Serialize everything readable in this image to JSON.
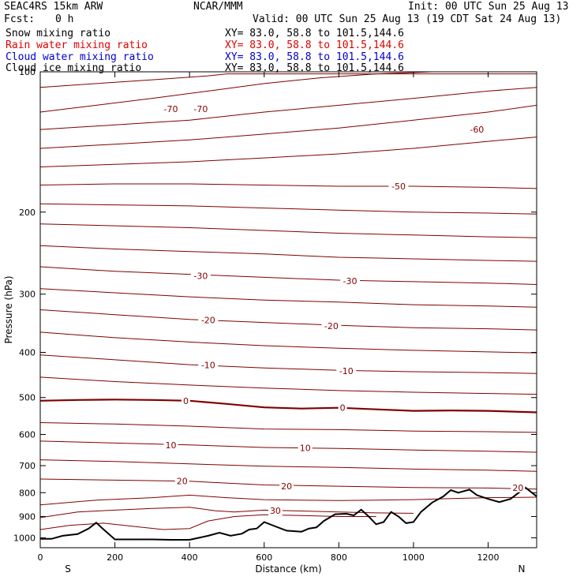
{
  "header": {
    "model": "SEAC4RS 15km ARW",
    "org": "NCAR/MMM",
    "init": "Init: 00 UTC Sun 25 Aug 13",
    "fcst_label": "Fcst:",
    "fcst_value": "0 h",
    "valid": "Valid: 00 UTC Sun 25 Aug 13 (19 CDT Sat 24 Aug 13)"
  },
  "fields": [
    {
      "name": "Snow mixing ratio",
      "xy": "XY=  83.0, 58.8 to 101.5,144.6",
      "color": "#000000"
    },
    {
      "name": "Rain water mixing ratio",
      "xy": "XY=  83.0, 58.8 to 101.5,144.6",
      "color": "#e00000"
    },
    {
      "name": "Cloud water mixing ratio",
      "xy": "XY=  83.0, 58.8 to 101.5,144.6",
      "color": "#0000d0"
    },
    {
      "name": "Cloud ice mixing ratio",
      "xy": "XY=  83.0, 58.8 to 101.5,144.6",
      "color": "#000000"
    }
  ],
  "chart_data": {
    "type": "line",
    "title": "",
    "xlabel": "Distance (km)",
    "ylabel": "Pressure (hPa)",
    "xlim": [
      0,
      1330
    ],
    "ylim": [
      1050,
      100
    ],
    "yscale": "log",
    "x_ticks": [
      0,
      200,
      400,
      600,
      800,
      1000,
      1200
    ],
    "y_ticks": [
      100,
      200,
      300,
      400,
      500,
      600,
      700,
      800,
      900,
      1000
    ],
    "x_end_labels": {
      "left": "S",
      "right": "N"
    },
    "contour_color": "#800000",
    "terrain_color": "#000000",
    "isotherms": [
      {
        "value": -75,
        "points": [
          [
            0,
            108
          ],
          [
            150,
            106
          ],
          [
            300,
            104
          ],
          [
            450,
            102
          ],
          [
            500,
            101
          ],
          [
            1330,
            101
          ]
        ]
      },
      {
        "value": -70,
        "points": [
          [
            0,
            122
          ],
          [
            150,
            118
          ],
          [
            300,
            114
          ],
          [
            450,
            110
          ],
          [
            600,
            106
          ],
          [
            750,
            103
          ],
          [
            900,
            101
          ],
          [
            1050,
            100
          ]
        ]
      },
      {
        "value": -65,
        "points": [
          [
            0,
            133
          ],
          [
            200,
            130
          ],
          [
            400,
            127
          ],
          [
            600,
            122
          ],
          [
            800,
            118
          ],
          [
            1000,
            114
          ],
          [
            1200,
            110
          ],
          [
            1330,
            108
          ]
        ]
      },
      {
        "value": -60,
        "points": [
          [
            0,
            146
          ],
          [
            200,
            143
          ],
          [
            400,
            140
          ],
          [
            600,
            136
          ],
          [
            800,
            132
          ],
          [
            1000,
            127
          ],
          [
            1200,
            122
          ],
          [
            1330,
            118
          ]
        ]
      },
      {
        "value": -55,
        "points": [
          [
            0,
            160
          ],
          [
            200,
            158
          ],
          [
            400,
            156
          ],
          [
            600,
            153
          ],
          [
            800,
            150
          ],
          [
            1000,
            146
          ],
          [
            1200,
            141
          ],
          [
            1330,
            138
          ]
        ]
      },
      {
        "value": -50,
        "points": [
          [
            0,
            175
          ],
          [
            200,
            174
          ],
          [
            400,
            174
          ],
          [
            600,
            175
          ],
          [
            800,
            176
          ],
          [
            1000,
            176
          ],
          [
            1200,
            177
          ],
          [
            1330,
            178
          ]
        ]
      },
      {
        "value": -45,
        "points": [
          [
            0,
            192
          ],
          [
            200,
            193
          ],
          [
            400,
            194
          ],
          [
            600,
            196
          ],
          [
            800,
            198
          ],
          [
            1000,
            200
          ],
          [
            1200,
            201
          ],
          [
            1330,
            202
          ]
        ]
      },
      {
        "value": -40,
        "points": [
          [
            0,
            212
          ],
          [
            200,
            214
          ],
          [
            400,
            216
          ],
          [
            600,
            219
          ],
          [
            800,
            222
          ],
          [
            1000,
            224
          ],
          [
            1200,
            226
          ],
          [
            1330,
            227
          ]
        ]
      },
      {
        "value": -35,
        "points": [
          [
            0,
            236
          ],
          [
            200,
            240
          ],
          [
            400,
            243
          ],
          [
            600,
            246
          ],
          [
            800,
            250
          ],
          [
            1000,
            252
          ],
          [
            1200,
            254
          ],
          [
            1330,
            255
          ]
        ]
      },
      {
        "value": -30,
        "points": [
          [
            0,
            262
          ],
          [
            200,
            268
          ],
          [
            400,
            272
          ],
          [
            600,
            276
          ],
          [
            800,
            280
          ],
          [
            1000,
            282
          ],
          [
            1200,
            284
          ],
          [
            1330,
            286
          ]
        ]
      },
      {
        "value": -25,
        "points": [
          [
            0,
            292
          ],
          [
            200,
            298
          ],
          [
            400,
            304
          ],
          [
            600,
            309
          ],
          [
            800,
            312
          ],
          [
            1000,
            316
          ],
          [
            1200,
            318
          ],
          [
            1330,
            320
          ]
        ]
      },
      {
        "value": -20,
        "points": [
          [
            0,
            324
          ],
          [
            200,
            332
          ],
          [
            400,
            340
          ],
          [
            600,
            345
          ],
          [
            800,
            350
          ],
          [
            1000,
            354
          ],
          [
            1200,
            356
          ],
          [
            1330,
            358
          ]
        ]
      },
      {
        "value": -15,
        "points": [
          [
            0,
            362
          ],
          [
            200,
            372
          ],
          [
            400,
            380
          ],
          [
            600,
            387
          ],
          [
            800,
            392
          ],
          [
            1000,
            396
          ],
          [
            1200,
            399
          ],
          [
            1330,
            401
          ]
        ]
      },
      {
        "value": -10,
        "points": [
          [
            0,
            405
          ],
          [
            200,
            415
          ],
          [
            400,
            425
          ],
          [
            600,
            432
          ],
          [
            800,
            437
          ],
          [
            1000,
            440
          ],
          [
            1200,
            442
          ],
          [
            1330,
            444
          ]
        ]
      },
      {
        "value": -5,
        "points": [
          [
            0,
            452
          ],
          [
            200,
            462
          ],
          [
            400,
            470
          ],
          [
            600,
            477
          ],
          [
            800,
            483
          ],
          [
            1000,
            487
          ],
          [
            1200,
            490
          ],
          [
            1330,
            492
          ]
        ]
      },
      {
        "value": 0,
        "points": [
          [
            0,
            508
          ],
          [
            100,
            506
          ],
          [
            200,
            505
          ],
          [
            300,
            506
          ],
          [
            400,
            508
          ],
          [
            500,
            516
          ],
          [
            600,
            525
          ],
          [
            700,
            528
          ],
          [
            800,
            526
          ],
          [
            900,
            530
          ],
          [
            1000,
            534
          ],
          [
            1100,
            533
          ],
          [
            1200,
            534
          ],
          [
            1330,
            538
          ]
        ]
      },
      {
        "value": 5,
        "points": [
          [
            0,
            566
          ],
          [
            200,
            570
          ],
          [
            400,
            576
          ],
          [
            600,
            584
          ],
          [
            800,
            586
          ],
          [
            1000,
            590
          ],
          [
            1200,
            592
          ],
          [
            1330,
            594
          ]
        ]
      },
      {
        "value": 10,
        "points": [
          [
            0,
            620
          ],
          [
            200,
            626
          ],
          [
            400,
            632
          ],
          [
            600,
            640
          ],
          [
            800,
            643
          ],
          [
            1000,
            648
          ],
          [
            1200,
            652
          ],
          [
            1330,
            655
          ]
        ]
      },
      {
        "value": 15,
        "points": [
          [
            0,
            680
          ],
          [
            200,
            686
          ],
          [
            400,
            694
          ],
          [
            600,
            702
          ],
          [
            800,
            706
          ],
          [
            1000,
            712
          ],
          [
            1200,
            716
          ],
          [
            1330,
            720
          ]
        ]
      },
      {
        "value": 20,
        "points": [
          [
            0,
            748
          ],
          [
            200,
            752
          ],
          [
            400,
            756
          ],
          [
            600,
            770
          ],
          [
            800,
            775
          ],
          [
            1000,
            780
          ],
          [
            1200,
            782
          ],
          [
            1330,
            786
          ]
        ]
      },
      {
        "value": 25,
        "points": [
          [
            0,
            850
          ],
          [
            150,
            830
          ],
          [
            300,
            820
          ],
          [
            400,
            810
          ],
          [
            500,
            820
          ],
          [
            600,
            828
          ],
          [
            700,
            830
          ],
          [
            800,
            832
          ],
          [
            900,
            830
          ],
          [
            1000,
            828
          ],
          [
            1100,
            824
          ],
          [
            1200,
            820
          ],
          [
            1330,
            818
          ]
        ]
      },
      {
        "value": 30,
        "points": [
          [
            0,
            905
          ],
          [
            100,
            880
          ],
          [
            200,
            872
          ],
          [
            300,
            865
          ],
          [
            400,
            860
          ],
          [
            470,
            875
          ],
          [
            520,
            880
          ],
          [
            600,
            872
          ],
          [
            700,
            876
          ],
          [
            800,
            880
          ],
          [
            900,
            884
          ],
          [
            1000,
            886
          ]
        ]
      },
      {
        "value": 35,
        "points": [
          [
            0,
            960
          ],
          [
            80,
            940
          ],
          [
            170,
            930
          ],
          [
            250,
            945
          ],
          [
            330,
            960
          ],
          [
            400,
            955
          ],
          [
            450,
            920
          ],
          [
            520,
            900
          ],
          [
            600,
            892
          ],
          [
            700,
            896
          ],
          [
            800,
            900
          ],
          [
            900,
            900
          ]
        ]
      }
    ],
    "terrain": [
      [
        0,
        1005
      ],
      [
        30,
        1005
      ],
      [
        60,
        990
      ],
      [
        100,
        982
      ],
      [
        130,
        955
      ],
      [
        150,
        928
      ],
      [
        170,
        960
      ],
      [
        200,
        1008
      ],
      [
        250,
        1008
      ],
      [
        300,
        1008
      ],
      [
        350,
        1010
      ],
      [
        400,
        1010
      ],
      [
        450,
        990
      ],
      [
        480,
        975
      ],
      [
        510,
        990
      ],
      [
        540,
        980
      ],
      [
        560,
        960
      ],
      [
        580,
        955
      ],
      [
        600,
        925
      ],
      [
        630,
        945
      ],
      [
        660,
        965
      ],
      [
        700,
        970
      ],
      [
        720,
        955
      ],
      [
        740,
        950
      ],
      [
        760,
        920
      ],
      [
        790,
        890
      ],
      [
        820,
        888
      ],
      [
        840,
        895
      ],
      [
        860,
        870
      ],
      [
        880,
        900
      ],
      [
        900,
        935
      ],
      [
        920,
        925
      ],
      [
        940,
        880
      ],
      [
        960,
        900
      ],
      [
        980,
        930
      ],
      [
        1000,
        925
      ],
      [
        1020,
        880
      ],
      [
        1050,
        840
      ],
      [
        1080,
        815
      ],
      [
        1100,
        790
      ],
      [
        1120,
        800
      ],
      [
        1150,
        788
      ],
      [
        1170,
        810
      ],
      [
        1200,
        825
      ],
      [
        1230,
        838
      ],
      [
        1260,
        825
      ],
      [
        1300,
        780
      ],
      [
        1330,
        815
      ]
    ],
    "labels": [
      {
        "text": "-70",
        "x": 350,
        "p": 120
      },
      {
        "text": "-70",
        "x": 430,
        "p": 120
      },
      {
        "text": "-60",
        "x": 1170,
        "p": 133
      },
      {
        "text": "-50",
        "x": 960,
        "p": 176
      },
      {
        "text": "-30",
        "x": 430,
        "p": 274
      },
      {
        "text": "-30",
        "x": 830,
        "p": 281
      },
      {
        "text": "-20",
        "x": 450,
        "p": 341
      },
      {
        "text": "-20",
        "x": 780,
        "p": 351
      },
      {
        "text": "-10",
        "x": 450,
        "p": 426
      },
      {
        "text": "-10",
        "x": 820,
        "p": 438
      },
      {
        "text": "0",
        "x": 390,
        "p": 508
      },
      {
        "text": "0",
        "x": 810,
        "p": 526
      },
      {
        "text": "10",
        "x": 350,
        "p": 632
      },
      {
        "text": "10",
        "x": 710,
        "p": 641
      },
      {
        "text": "20",
        "x": 380,
        "p": 755
      },
      {
        "text": "20",
        "x": 660,
        "p": 775
      },
      {
        "text": "20",
        "x": 1280,
        "p": 780
      },
      {
        "text": "30",
        "x": 630,
        "p": 875
      }
    ]
  }
}
